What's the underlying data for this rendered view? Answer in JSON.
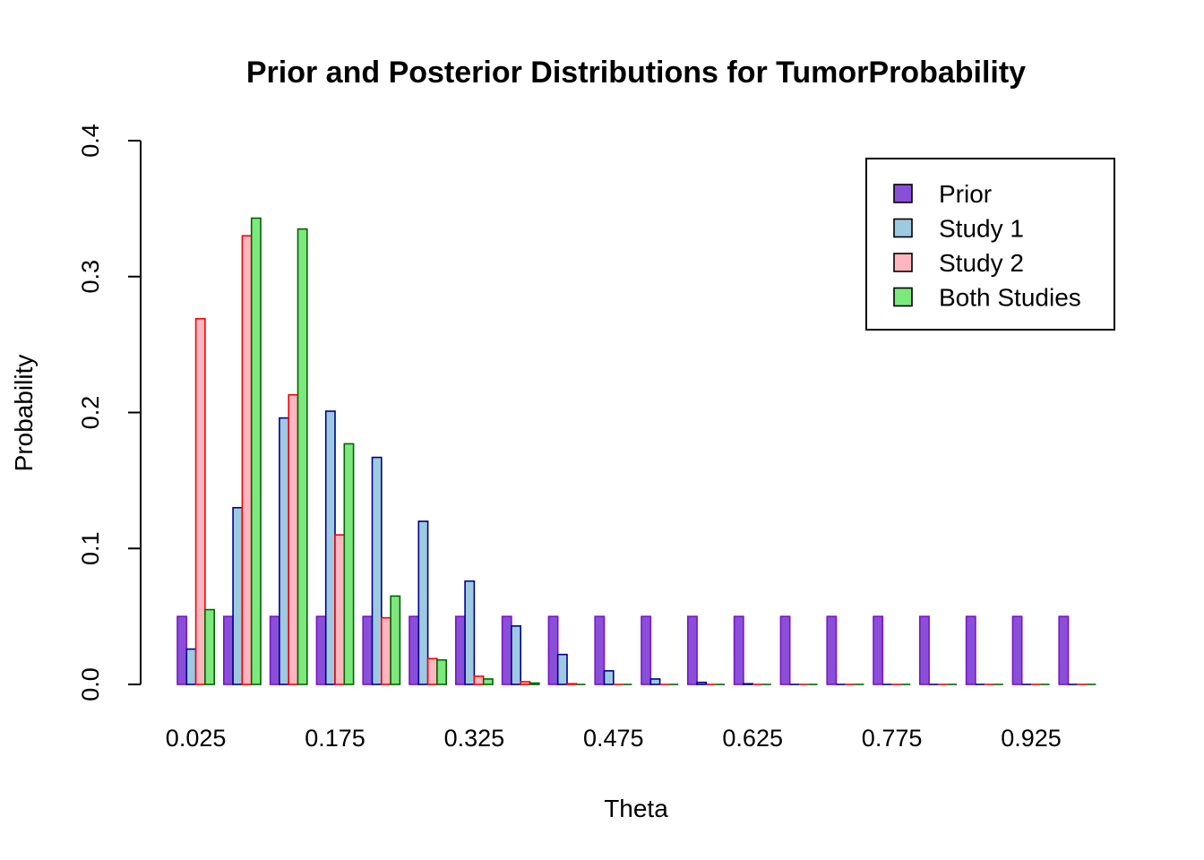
{
  "chart_data": {
    "type": "bar",
    "title": "Prior and Posterior Distributions for TumorProbability",
    "xlabel": "Theta",
    "ylabel": "Probability",
    "ylim": [
      0,
      0.4
    ],
    "yticks": [
      "0.0",
      "0.1",
      "0.2",
      "0.3",
      "0.4"
    ],
    "categories": [
      "0.025",
      "0.075",
      "0.125",
      "0.175",
      "0.225",
      "0.275",
      "0.325",
      "0.375",
      "0.425",
      "0.475",
      "0.525",
      "0.575",
      "0.625",
      "0.675",
      "0.725",
      "0.775",
      "0.825",
      "0.875",
      "0.925",
      "0.975"
    ],
    "x_tick_labels": [
      "0.025",
      "0.175",
      "0.325",
      "0.475",
      "0.625",
      "0.775",
      "0.925"
    ],
    "legend_position": "top-right",
    "grid": false,
    "series": [
      {
        "name": "Prior",
        "fill": "#8a4fd8",
        "stroke": "#7b14c8",
        "values": [
          0.05,
          0.05,
          0.05,
          0.05,
          0.05,
          0.05,
          0.05,
          0.05,
          0.05,
          0.05,
          0.05,
          0.05,
          0.05,
          0.05,
          0.05,
          0.05,
          0.05,
          0.05,
          0.05,
          0.05
        ]
      },
      {
        "name": "Study 1",
        "fill": "#9ecae1",
        "stroke": "#00008b",
        "values": [
          0.026,
          0.13,
          0.196,
          0.201,
          0.167,
          0.12,
          0.076,
          0.043,
          0.022,
          0.01,
          0.004,
          0.0015,
          0.0005,
          0.0002,
          0.0001,
          0,
          0,
          0,
          0,
          0
        ]
      },
      {
        "name": "Study 2",
        "fill": "#ffb6c1",
        "stroke": "#ff0000",
        "values": [
          0.269,
          0.33,
          0.213,
          0.11,
          0.049,
          0.019,
          0.006,
          0.002,
          0.0005,
          0.0002,
          0,
          0,
          0,
          0,
          0,
          0,
          0,
          0,
          0,
          0
        ]
      },
      {
        "name": "Both Studies",
        "fill": "#7de87d",
        "stroke": "#006400",
        "values": [
          0.055,
          0.343,
          0.335,
          0.177,
          0.065,
          0.018,
          0.004,
          0.001,
          0.0002,
          0,
          0,
          0,
          0,
          0,
          0,
          0,
          0,
          0,
          0,
          0
        ]
      }
    ]
  }
}
